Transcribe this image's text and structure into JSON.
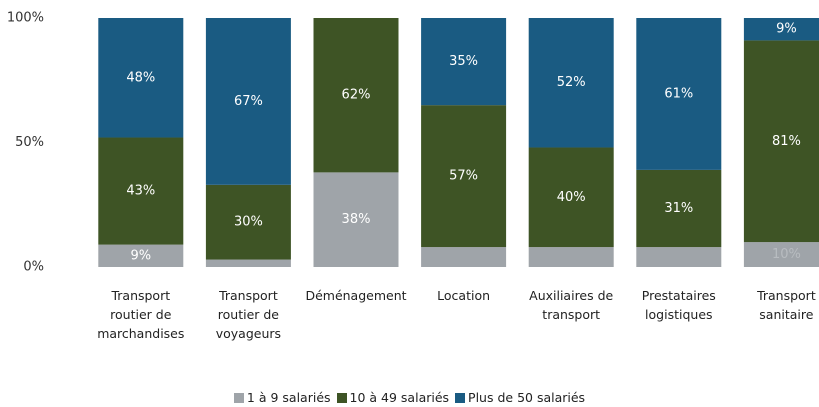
{
  "chart_data": {
    "type": "stacked_bar",
    "categories": [
      "Transport routier de marchandises",
      "Transport routier de voyageurs",
      "Déménagement",
      "Location",
      "Auxiliaires de transport",
      "Prestataires logistiques",
      "Transport sanitaire"
    ],
    "series": [
      {
        "name": "1 à 9 salariés",
        "color": "#9fa4a9",
        "values": [
          9,
          3,
          38,
          8,
          8,
          8,
          10
        ],
        "value_labels": [
          "9%",
          null,
          "38%",
          null,
          null,
          null,
          "10%"
        ]
      },
      {
        "name": "10 à 49 salariés",
        "color": "#3e5425",
        "values": [
          43,
          30,
          62,
          57,
          40,
          31,
          81
        ],
        "value_labels": [
          "43%",
          "30%",
          "62%",
          "57%",
          "40%",
          "31%",
          "81%"
        ]
      },
      {
        "name": "Plus de 50 salariés",
        "color": "#1a5b82",
        "values": [
          48,
          67,
          0,
          35,
          52,
          61,
          9
        ],
        "value_labels": [
          "48%",
          "67%",
          null,
          "35%",
          "52%",
          "61%",
          "9%"
        ]
      }
    ],
    "ylim": [
      0,
      100
    ],
    "yticks": [
      {
        "value": 0,
        "label": "0%"
      },
      {
        "value": 50,
        "label": "50%"
      },
      {
        "value": 100,
        "label": "100%"
      }
    ],
    "legend": "bottom"
  }
}
